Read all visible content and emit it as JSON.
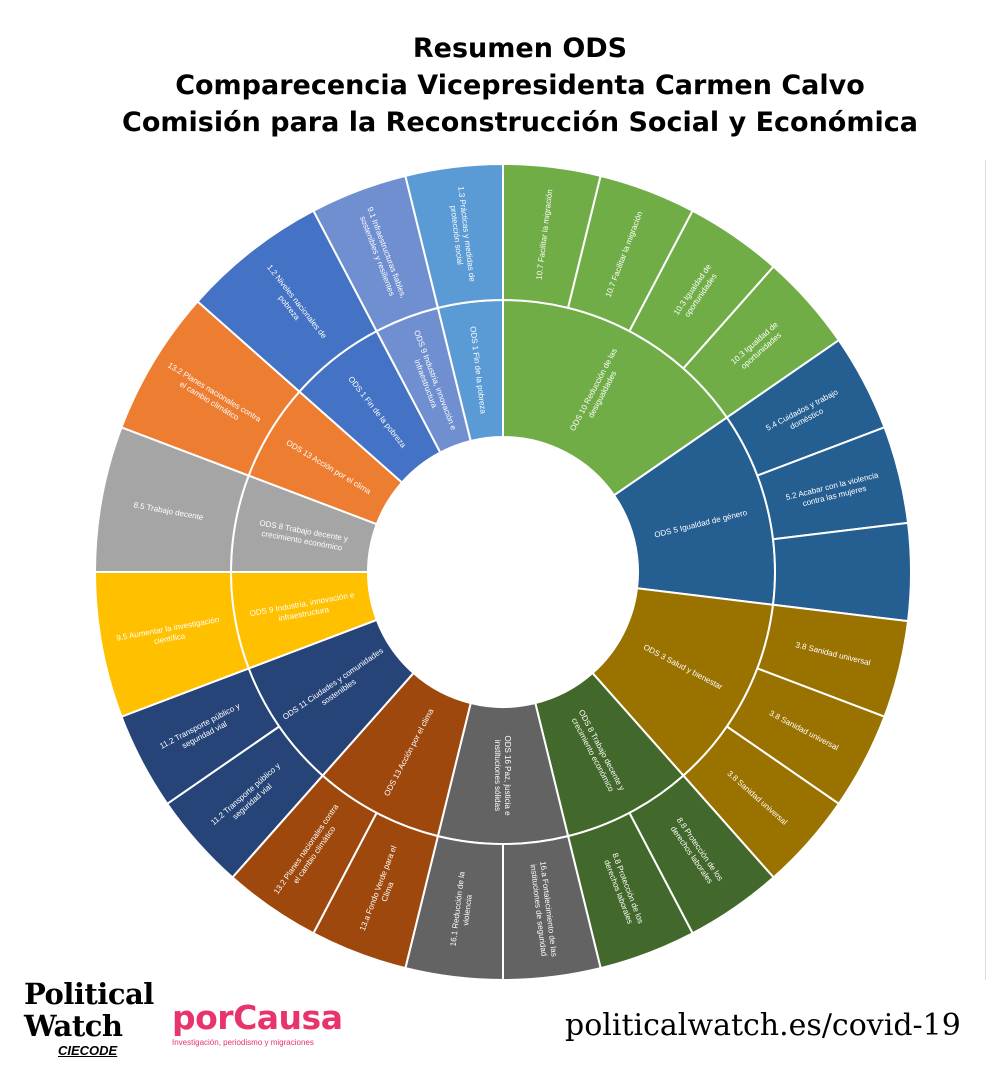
{
  "title": {
    "line1": "Resumen ODS",
    "line2": "Comparecencia Vicepresidenta Carmen Calvo",
    "line3": "Comisión para la Reconstrucción Social y Económica"
  },
  "chart_data": {
    "type": "sunburst",
    "start_angle_deg": 0,
    "direction": "clockwise",
    "groups": [
      {
        "label": "ODS 10 Reducción de las desigualdades",
        "color": "#70ad47",
        "children": [
          {
            "label": "10.7 Facilitar la migración",
            "value": 1
          },
          {
            "label": "10.7 Facilitar la migración",
            "value": 1
          },
          {
            "label": "10.3 Igualdad de oportunidades",
            "value": 1
          },
          {
            "label": "10.3 Igualdad de oportunidades",
            "value": 1
          }
        ]
      },
      {
        "label": "ODS 5 Igualdad de género",
        "color": "#255e91",
        "children": [
          {
            "label": "5.4 Cuidados y trabajo doméstico",
            "value": 1
          },
          {
            "label": "5.2 Acabar con la violencia contra las mujeres",
            "value": 1
          },
          {
            "label": "",
            "value": 1
          }
        ]
      },
      {
        "label": "ODS 3 Salud y bienestar",
        "color": "#9a7200",
        "children": [
          {
            "label": "3.8 Sanidad universal",
            "value": 1
          },
          {
            "label": "3.8 Sanidad universal",
            "value": 1
          },
          {
            "label": "3.8 Sanidad universal",
            "value": 1
          }
        ]
      },
      {
        "label": "ODS 8 Trabajo decente y crecimiento económico",
        "color": "#43682b",
        "children": [
          {
            "label": "8.8 Protección de los derechos laborales",
            "value": 1
          },
          {
            "label": "8.8 Protección de los derechos laborales",
            "value": 1
          }
        ]
      },
      {
        "label": "ODS 16 Paz, justicia e instituciones sólidas",
        "color": "#636363",
        "children": [
          {
            "label": "16.a Fortalecimiento de las instituciones de seguridad",
            "value": 1
          },
          {
            "label": "16.1 Reducción de la violencia",
            "value": 1
          }
        ]
      },
      {
        "label": "ODS 13 Acción por el clima",
        "color": "#9e480e",
        "children": [
          {
            "label": "13.a Fondo Verde para el Clima",
            "value": 1
          },
          {
            "label": "13.2 Planes nacionales contra el cambio climático",
            "value": 1
          }
        ]
      },
      {
        "label": "ODS 11 Ciudades y comunidades sostenibles",
        "color": "#264478",
        "children": [
          {
            "label": "11.2 Transporte público y seguridad vial",
            "value": 1
          },
          {
            "label": "11.2 Transporte público y seguridad vial",
            "value": 1
          }
        ]
      },
      {
        "label": "ODS 9 Industria, innovación e infraestructura",
        "color": "#ffc000",
        "children": [
          {
            "label": "9.5 Aumentar la investigación científica",
            "value": 1.5
          }
        ]
      },
      {
        "label": "ODS 8 Trabajo decente y crecimiento económico",
        "color": "#a5a5a5",
        "children": [
          {
            "label": "8.5 Trabajo decente",
            "value": 1.5
          }
        ]
      },
      {
        "label": "ODS 13 Acción por el clima",
        "color": "#ed7d31",
        "children": [
          {
            "label": "13.2 Planes nacionales contra el cambio climático",
            "value": 1.5
          }
        ]
      },
      {
        "label": "ODS 1 Fin de la pobreza",
        "color": "#4472c4",
        "children": [
          {
            "label": "1.2 Niveles nacionales de pobreza",
            "value": 1.5
          }
        ]
      },
      {
        "label": "ODS 9 Industria, innovación e infraestructura",
        "color": "#6f8fd0",
        "children": [
          {
            "label": "9.1 Infraestructuras fiables, sostenibles y resilientes",
            "value": 1
          }
        ]
      },
      {
        "label": "ODS 1 Fin de la pobreza",
        "color": "#5b9bd5",
        "children": [
          {
            "label": "1.3 Prácticas y medidas de protección social",
            "value": 1
          }
        ]
      }
    ]
  },
  "logos": {
    "political_line1": "Political",
    "political_line2": "Watch",
    "political_sub": "CIECODE",
    "porcausa_name": "porCausa",
    "porcausa_tagline": "Investigación, periodismo y migraciones"
  },
  "url": "politicalwatch.es/covid-19"
}
